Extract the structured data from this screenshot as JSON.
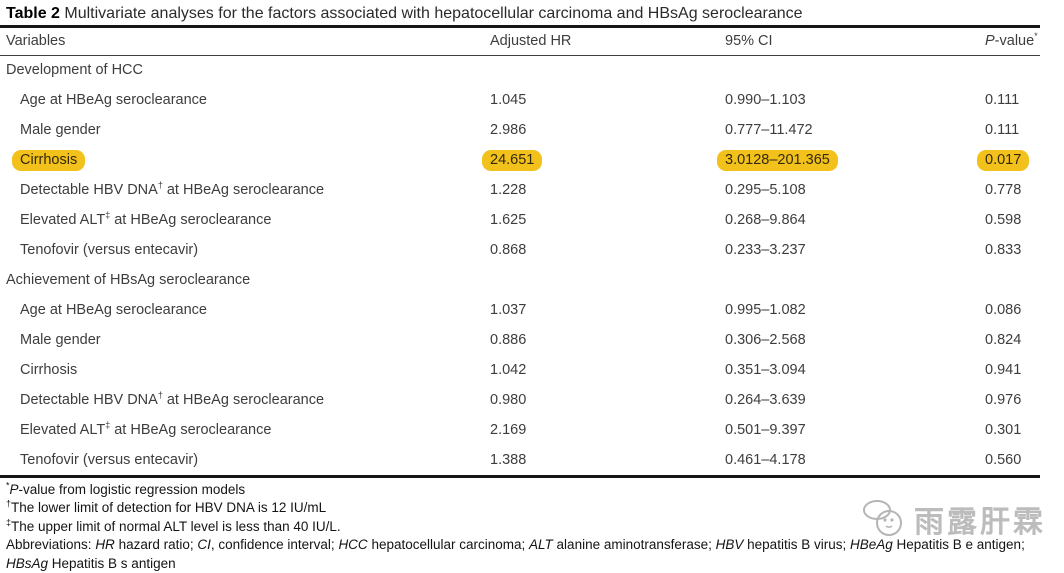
{
  "meta": {
    "highlight_color": "#f2c11c",
    "rule_color": "#161616",
    "watermark_color": "#bcbcbc"
  },
  "caption": {
    "label": "Table 2",
    "title": " Multivariate analyses for the factors associated with hepatocellular carcinoma and HBsAg seroclearance"
  },
  "header": {
    "variables": "Variables",
    "adjusted_hr": "Adjusted HR",
    "ci": "95% CI",
    "p_italic": "P",
    "p_rest": "-value",
    "p_sup": "*"
  },
  "sections": [
    {
      "header": "Development of HCC",
      "rows": [
        {
          "variable": "Age at HBeAg seroclearance",
          "var_sup": "",
          "var_rest": "",
          "hr": "1.045",
          "ci": "0.990–1.103",
          "p": "0.111",
          "highlight": false
        },
        {
          "variable": "Male gender",
          "var_sup": "",
          "var_rest": "",
          "hr": "2.986",
          "ci": "0.777–11.472",
          "p": "0.111",
          "highlight": false
        },
        {
          "variable": "Cirrhosis",
          "var_sup": "",
          "var_rest": "",
          "hr": "24.651",
          "ci": "3.0128–201.365",
          "p": "0.017",
          "highlight": true
        },
        {
          "variable": "Detectable HBV DNA",
          "var_sup": "†",
          "var_rest": " at HBeAg seroclearance",
          "hr": "1.228",
          "ci": "0.295–5.108",
          "p": "0.778",
          "highlight": false
        },
        {
          "variable": "Elevated ALT",
          "var_sup": "‡",
          "var_rest": " at HBeAg seroclearance",
          "hr": "1.625",
          "ci": "0.268–9.864",
          "p": "0.598",
          "highlight": false
        },
        {
          "variable": "Tenofovir (versus entecavir)",
          "var_sup": "",
          "var_rest": "",
          "hr": "0.868",
          "ci": "0.233–3.237",
          "p": "0.833",
          "highlight": false
        }
      ]
    },
    {
      "header": "Achievement of HBsAg seroclearance",
      "rows": [
        {
          "variable": "Age at HBeAg seroclearance",
          "var_sup": "",
          "var_rest": "",
          "hr": "1.037",
          "ci": "0.995–1.082",
          "p": "0.086",
          "highlight": false
        },
        {
          "variable": "Male gender",
          "var_sup": "",
          "var_rest": "",
          "hr": "0.886",
          "ci": "0.306–2.568",
          "p": "0.824",
          "highlight": false
        },
        {
          "variable": "Cirrhosis",
          "var_sup": "",
          "var_rest": "",
          "hr": "1.042",
          "ci": "0.351–3.094",
          "p": "0.941",
          "highlight": false
        },
        {
          "variable": "Detectable HBV DNA",
          "var_sup": "†",
          "var_rest": " at HBeAg seroclearance",
          "hr": "0.980",
          "ci": "0.264–3.639",
          "p": "0.976",
          "highlight": false
        },
        {
          "variable": "Elevated ALT",
          "var_sup": "‡",
          "var_rest": " at HBeAg seroclearance",
          "hr": "2.169",
          "ci": "0.501–9.397",
          "p": "0.301",
          "highlight": false
        },
        {
          "variable": "Tenofovir (versus entecavir)",
          "var_sup": "",
          "var_rest": "",
          "hr": "1.388",
          "ci": "0.461–4.178",
          "p": "0.560",
          "highlight": false
        }
      ]
    }
  ],
  "footnotes": [
    [
      {
        "t": "*",
        "sup": true
      },
      {
        "t": "P",
        "italic": true
      },
      {
        "t": "-value from logistic regression models"
      }
    ],
    [
      {
        "t": "†",
        "sup": true
      },
      {
        "t": "The lower limit of detection for HBV DNA is 12 IU/mL"
      }
    ],
    [
      {
        "t": "‡",
        "sup": true
      },
      {
        "t": "The upper limit of normal ALT level is less than 40 IU/L."
      }
    ],
    [
      {
        "t": "Abbreviations: "
      },
      {
        "t": "HR",
        "italic": true
      },
      {
        "t": " hazard ratio; "
      },
      {
        "t": "CI",
        "italic": true
      },
      {
        "t": ", confidence interval; "
      },
      {
        "t": "HCC",
        "italic": true
      },
      {
        "t": " hepatocellular carcinoma; "
      },
      {
        "t": "ALT",
        "italic": true
      },
      {
        "t": " alanine aminotransferase; "
      },
      {
        "t": "HBV",
        "italic": true
      },
      {
        "t": " hepatitis B virus; "
      },
      {
        "t": "HBeAg",
        "italic": true
      },
      {
        "t": " Hepatitis B e antigen; "
      },
      {
        "t": "HBsAg",
        "italic": true
      },
      {
        "t": " Hepatitis B s antigen"
      }
    ]
  ],
  "watermark": {
    "text": "雨露肝霖"
  }
}
